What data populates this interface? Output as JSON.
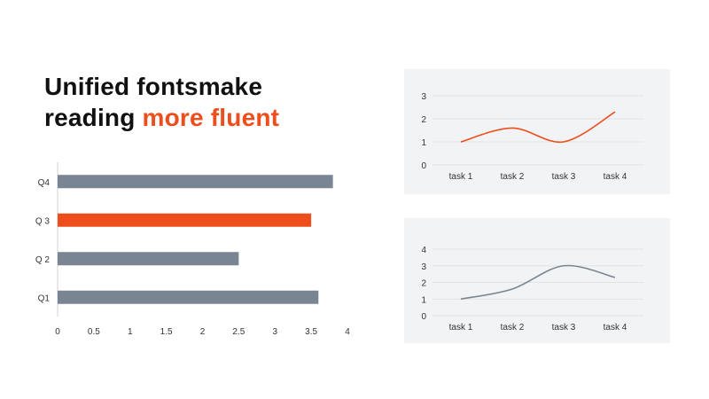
{
  "title": {
    "line1": "Unified fontsmake",
    "line2_prefix": "reading",
    "line2_highlight": "more fluent"
  },
  "colors": {
    "accent": "#ee4d1c",
    "bar_default": "#7a8594",
    "line_gray": "#7a8594",
    "panel_bg": "#f2f3f4",
    "grid": "#e1e3e6"
  },
  "chart_data": [
    {
      "type": "bar",
      "orientation": "horizontal",
      "categories": [
        "Q1",
        "Q 2",
        "Q 3",
        "Q4"
      ],
      "values": [
        3.6,
        2.5,
        3.5,
        3.8
      ],
      "highlight_index": 2,
      "xlim": [
        0,
        4
      ],
      "xticks": [
        "0",
        "0.5",
        "1",
        "1.5",
        "2",
        "2.5",
        "3",
        "3.5",
        "4"
      ],
      "grid": false
    },
    {
      "type": "line",
      "categories": [
        "task 1",
        "task 2",
        "task 3",
        "task 4"
      ],
      "values": [
        1.0,
        1.6,
        1.0,
        2.3
      ],
      "ylim": [
        0,
        3
      ],
      "yticks": [
        "0",
        "1",
        "2",
        "3"
      ],
      "color": "#ee4d1c",
      "grid": true
    },
    {
      "type": "line",
      "categories": [
        "task 1",
        "task 2",
        "task 3",
        "task 4"
      ],
      "values": [
        1.0,
        1.6,
        3.0,
        2.3
      ],
      "ylim": [
        0,
        4
      ],
      "yticks": [
        "0",
        "1",
        "2",
        "3",
        "4"
      ],
      "color": "#7a8594",
      "grid": true
    }
  ]
}
